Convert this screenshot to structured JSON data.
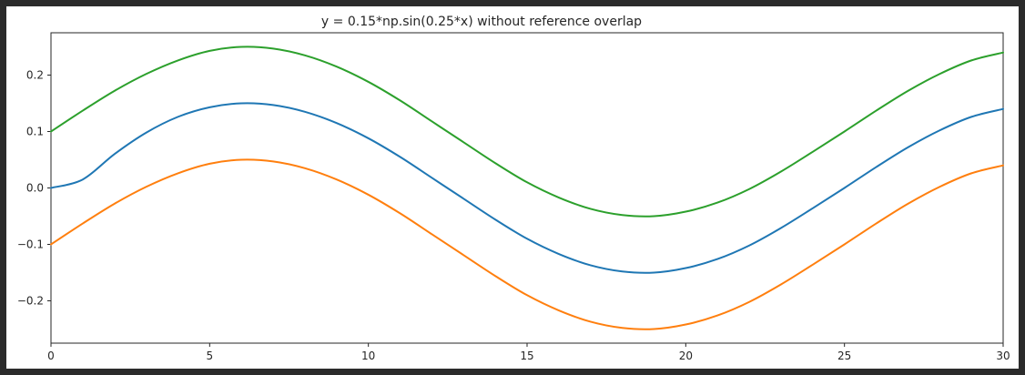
{
  "chart_data": {
    "type": "line",
    "title": "y = 0.15*np.sin(0.25*x) without reference overlap",
    "xlabel": "",
    "ylabel": "",
    "xlim": [
      0,
      30
    ],
    "ylim": [
      -0.275,
      0.275
    ],
    "x_ticks": [
      0,
      5,
      10,
      15,
      20,
      25,
      30
    ],
    "x_tick_labels": [
      "0",
      "5",
      "10",
      "15",
      "20",
      "25",
      "30"
    ],
    "y_ticks": [
      -0.2,
      -0.1,
      0.0,
      0.1,
      0.2
    ],
    "y_tick_labels": [
      "−0.2",
      "−0.1",
      "0.0",
      "0.1",
      "0.2"
    ],
    "grid": false,
    "legend": "none",
    "x": [
      0,
      1,
      2,
      3,
      4,
      5,
      6,
      7,
      8,
      9,
      10,
      11,
      12,
      13,
      14,
      15,
      16,
      17,
      18,
      19,
      20,
      21,
      22,
      23,
      24,
      25,
      26,
      27,
      28,
      29,
      30
    ],
    "series": [
      {
        "color": "#2ca02c",
        "values": [
          0.1,
          0.137,
          0.172,
          0.202,
          0.226,
          0.243,
          0.25,
          0.247,
          0.235,
          0.215,
          0.188,
          0.155,
          0.118,
          0.081,
          0.044,
          0.01,
          -0.017,
          -0.037,
          -0.048,
          -0.05,
          -0.042,
          -0.026,
          -0.002,
          0.029,
          0.064,
          0.1,
          0.137,
          0.172,
          0.202,
          0.226,
          0.24
        ]
      },
      {
        "color": "#1f77b4",
        "values": [
          0.0,
          0.015,
          0.06,
          0.098,
          0.126,
          0.143,
          0.15,
          0.147,
          0.135,
          0.115,
          0.088,
          0.055,
          0.018,
          -0.019,
          -0.056,
          -0.09,
          -0.117,
          -0.137,
          -0.148,
          -0.15,
          -0.142,
          -0.126,
          -0.102,
          -0.071,
          -0.036,
          0.0,
          0.037,
          0.072,
          0.102,
          0.126,
          0.14
        ]
      },
      {
        "color": "#ff7f0e",
        "values": [
          -0.1,
          -0.063,
          -0.028,
          0.002,
          0.026,
          0.043,
          0.05,
          0.047,
          0.035,
          0.015,
          -0.012,
          -0.045,
          -0.082,
          -0.119,
          -0.156,
          -0.19,
          -0.217,
          -0.237,
          -0.248,
          -0.25,
          -0.242,
          -0.226,
          -0.202,
          -0.171,
          -0.136,
          -0.1,
          -0.063,
          -0.028,
          0.002,
          0.026,
          0.04
        ]
      }
    ]
  }
}
